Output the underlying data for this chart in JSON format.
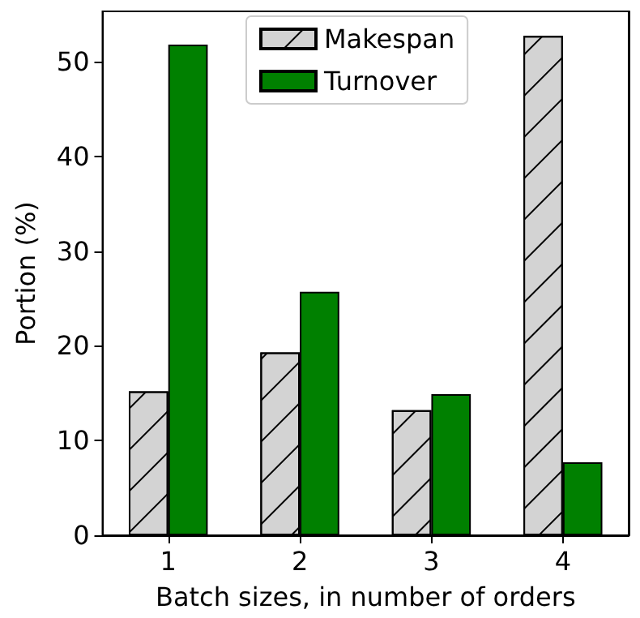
{
  "chart_data": {
    "type": "bar",
    "xlabel": "Batch sizes, in number of orders",
    "ylabel": "Portion (%)",
    "categories": [
      "1",
      "2",
      "3",
      "4"
    ],
    "series": [
      {
        "name": "Makespan",
        "color": "#d3d3d3",
        "values": [
          15.2,
          19.3,
          13.2,
          52.7
        ]
      },
      {
        "name": "Turnover",
        "color": "#008000",
        "values": [
          51.8,
          25.7,
          14.9,
          7.7
        ]
      }
    ],
    "ylim": [
      0,
      55.3
    ],
    "yticks": [
      0,
      10,
      20,
      30,
      40,
      50
    ],
    "grid": false,
    "legend": "top"
  }
}
